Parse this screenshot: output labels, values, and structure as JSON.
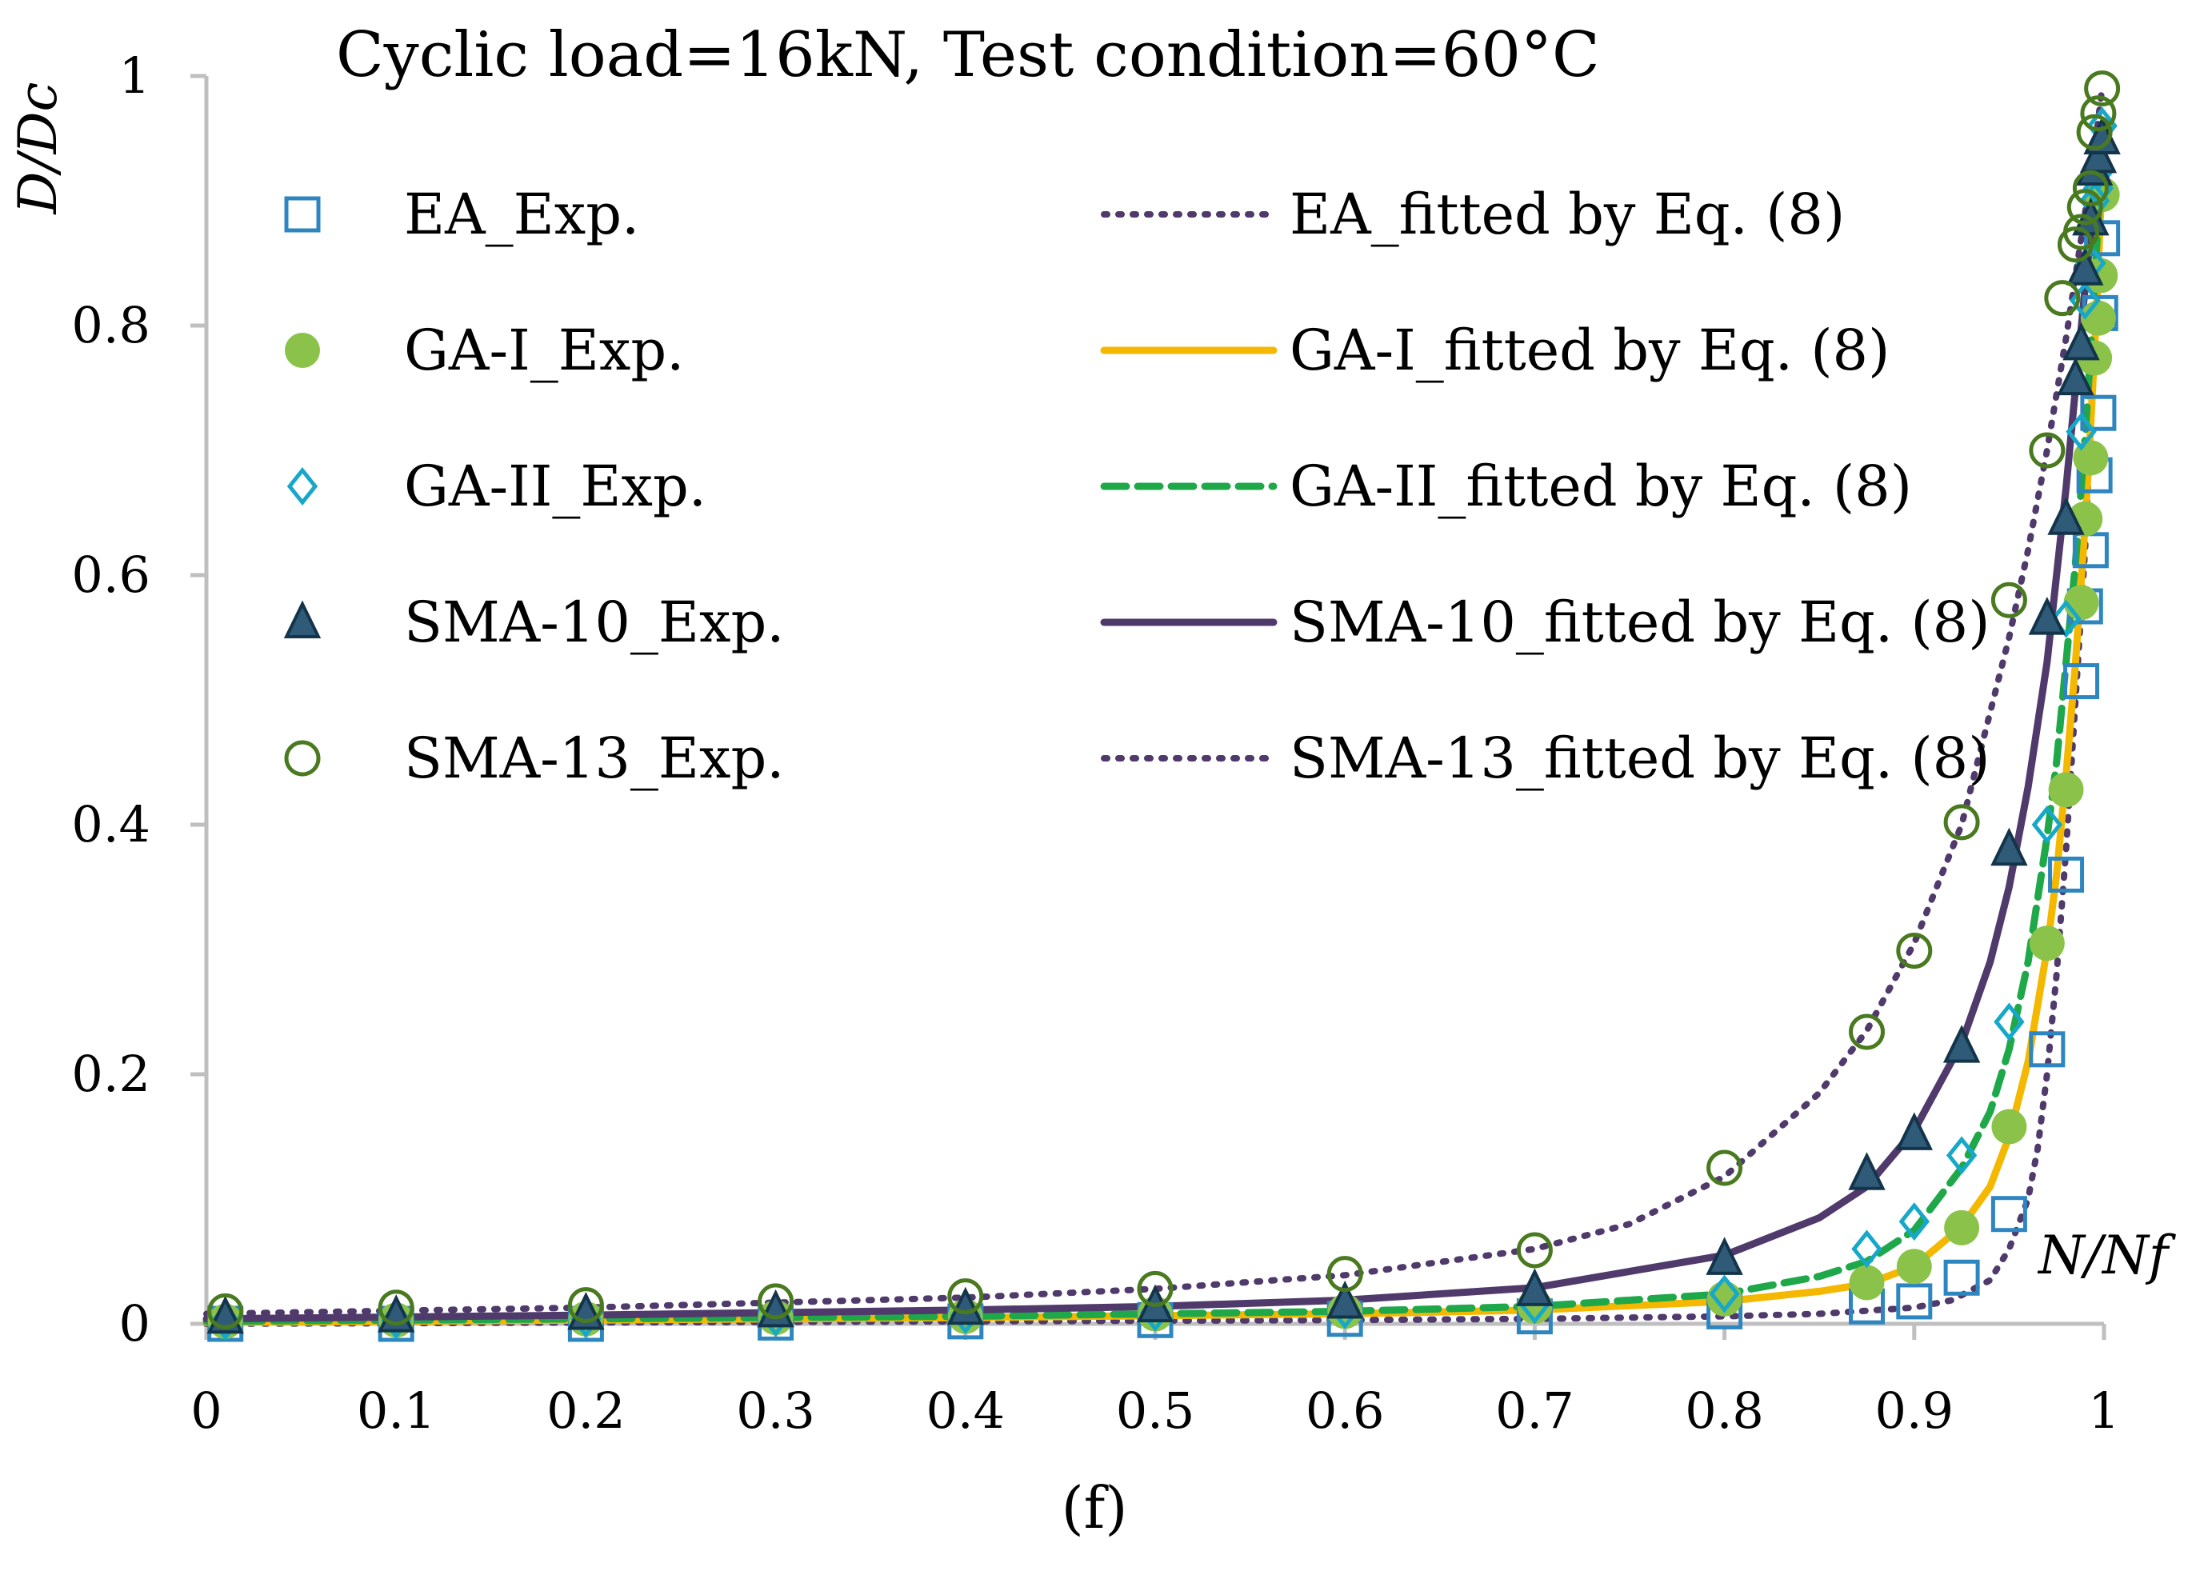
{
  "chart_data": {
    "type": "scatter",
    "title": "Cyclic load=16kN, Test condition=60°C",
    "ylabel": "D/Dc",
    "xlabel": "N/Nf",
    "caption": "(f)",
    "xlim": [
      0,
      1
    ],
    "ylim": [
      0,
      1
    ],
    "x_ticks": [
      "0",
      "0.1",
      "0.2",
      "0.3",
      "0.4",
      "0.5",
      "0.6",
      "0.7",
      "0.8",
      "0.9",
      "1"
    ],
    "y_ticks": [
      "0",
      "0.2",
      "0.4",
      "0.6",
      "0.8",
      "1"
    ],
    "grid": false,
    "legend_position": "top-left",
    "series": [
      {
        "name": "EA_Exp.",
        "kind": "markers",
        "marker": "square-open",
        "color": "#2e86c1",
        "x": [
          0.01,
          0.1,
          0.2,
          0.3,
          0.4,
          0.5,
          0.6,
          0.7,
          0.8,
          0.875,
          0.9,
          0.925,
          0.95,
          0.97,
          0.98,
          0.988,
          0.99,
          0.993,
          0.995,
          0.997,
          0.998,
          0.999
        ],
        "y": [
          0.0,
          0.0,
          0.0,
          0.001,
          0.002,
          0.003,
          0.004,
          0.006,
          0.01,
          0.014,
          0.018,
          0.037,
          0.088,
          0.22,
          0.36,
          0.515,
          0.575,
          0.62,
          0.68,
          0.73,
          0.81,
          0.87
        ]
      },
      {
        "name": "GA-I_Exp.",
        "kind": "markers",
        "marker": "circle-filled",
        "color": "#8bc34a",
        "x": [
          0.01,
          0.1,
          0.2,
          0.3,
          0.4,
          0.5,
          0.6,
          0.7,
          0.8,
          0.875,
          0.9,
          0.925,
          0.95,
          0.97,
          0.98,
          0.988,
          0.99,
          0.993,
          0.995,
          0.997,
          0.998,
          0.999
        ],
        "y": [
          0.002,
          0.003,
          0.004,
          0.005,
          0.006,
          0.008,
          0.01,
          0.014,
          0.02,
          0.033,
          0.046,
          0.077,
          0.158,
          0.305,
          0.428,
          0.578,
          0.645,
          0.694,
          0.774,
          0.806,
          0.84,
          0.905
        ]
      },
      {
        "name": "GA-II_Exp.",
        "kind": "markers",
        "marker": "diamond-open",
        "color": "#17a8c9",
        "x": [
          0.01,
          0.1,
          0.2,
          0.3,
          0.4,
          0.5,
          0.6,
          0.7,
          0.8,
          0.875,
          0.9,
          0.925,
          0.95,
          0.97,
          0.98,
          0.988,
          0.99,
          0.993,
          0.995,
          0.997,
          0.998,
          0.999
        ],
        "y": [
          0.002,
          0.003,
          0.004,
          0.005,
          0.007,
          0.009,
          0.011,
          0.015,
          0.024,
          0.06,
          0.082,
          0.135,
          0.242,
          0.4,
          0.565,
          0.715,
          0.82,
          0.85,
          0.9,
          0.91,
          0.925,
          0.96
        ]
      },
      {
        "name": "SMA-10_Exp.",
        "kind": "markers",
        "marker": "triangle-filled",
        "color": "#1f4e6b",
        "x": [
          0.01,
          0.1,
          0.2,
          0.3,
          0.4,
          0.5,
          0.6,
          0.7,
          0.8,
          0.875,
          0.9,
          0.925,
          0.95,
          0.97,
          0.98,
          0.985,
          0.988,
          0.99,
          0.993,
          0.995,
          0.997,
          0.999
        ],
        "y": [
          0.005,
          0.006,
          0.008,
          0.01,
          0.012,
          0.014,
          0.017,
          0.027,
          0.052,
          0.12,
          0.152,
          0.222,
          0.38,
          0.565,
          0.645,
          0.757,
          0.785,
          0.845,
          0.885,
          0.925,
          0.935,
          0.95
        ]
      },
      {
        "name": "SMA-13_Exp.",
        "kind": "markers",
        "marker": "circle-open",
        "color": "#4a7a1f",
        "x": [
          0.01,
          0.1,
          0.2,
          0.3,
          0.4,
          0.5,
          0.6,
          0.7,
          0.8,
          0.875,
          0.9,
          0.925,
          0.95,
          0.97,
          0.978,
          0.985,
          0.988,
          0.99,
          0.993,
          0.995,
          0.997,
          0.999
        ],
        "y": [
          0.01,
          0.013,
          0.015,
          0.018,
          0.022,
          0.028,
          0.04,
          0.059,
          0.125,
          0.234,
          0.299,
          0.402,
          0.58,
          0.7,
          0.822,
          0.865,
          0.875,
          0.895,
          0.91,
          0.955,
          0.97,
          0.99
        ]
      },
      {
        "name": "EA_fitted by Eq. (8)",
        "kind": "line",
        "style": "dotted",
        "color": "#4f3a6b",
        "x": [
          0.0,
          0.2,
          0.4,
          0.6,
          0.7,
          0.8,
          0.85,
          0.9,
          0.92,
          0.94,
          0.95,
          0.96,
          0.965,
          0.97,
          0.975,
          0.98,
          0.985,
          0.99,
          0.993,
          0.996,
          0.999
        ],
        "y": [
          0.0,
          0.001,
          0.002,
          0.003,
          0.004,
          0.006,
          0.008,
          0.013,
          0.019,
          0.035,
          0.06,
          0.1,
          0.14,
          0.2,
          0.28,
          0.38,
          0.5,
          0.62,
          0.72,
          0.82,
          0.92
        ]
      },
      {
        "name": "GA-I_fitted by Eq. (8)",
        "kind": "line",
        "style": "solid",
        "color": "#f5b800",
        "x": [
          0.0,
          0.2,
          0.4,
          0.6,
          0.7,
          0.8,
          0.85,
          0.875,
          0.9,
          0.925,
          0.94,
          0.95,
          0.96,
          0.97,
          0.975,
          0.98,
          0.985,
          0.99,
          0.993,
          0.996,
          0.999
        ],
        "y": [
          0.001,
          0.003,
          0.005,
          0.008,
          0.011,
          0.018,
          0.026,
          0.032,
          0.046,
          0.078,
          0.11,
          0.15,
          0.21,
          0.3,
          0.36,
          0.44,
          0.53,
          0.64,
          0.72,
          0.81,
          0.92
        ]
      },
      {
        "name": "GA-II_fitted by Eq. (8)",
        "kind": "line",
        "style": "dashed",
        "color": "#1fa84a",
        "x": [
          0.0,
          0.2,
          0.4,
          0.6,
          0.7,
          0.8,
          0.85,
          0.875,
          0.9,
          0.925,
          0.94,
          0.95,
          0.96,
          0.97,
          0.975,
          0.98,
          0.985,
          0.99,
          0.993,
          0.996,
          0.999
        ],
        "y": [
          0.002,
          0.004,
          0.006,
          0.01,
          0.014,
          0.024,
          0.038,
          0.05,
          0.075,
          0.125,
          0.17,
          0.22,
          0.29,
          0.39,
          0.45,
          0.53,
          0.61,
          0.71,
          0.78,
          0.86,
          0.94
        ]
      },
      {
        "name": "SMA-10_fitted by Eq. (8)",
        "kind": "line",
        "style": "solid",
        "color": "#4f3a6b",
        "x": [
          0.0,
          0.2,
          0.4,
          0.5,
          0.6,
          0.7,
          0.8,
          0.85,
          0.875,
          0.9,
          0.925,
          0.94,
          0.95,
          0.96,
          0.97,
          0.975,
          0.98,
          0.985,
          0.99,
          0.995,
          0.999
        ],
        "y": [
          0.004,
          0.007,
          0.011,
          0.014,
          0.019,
          0.029,
          0.055,
          0.085,
          0.11,
          0.155,
          0.225,
          0.29,
          0.35,
          0.43,
          0.53,
          0.6,
          0.67,
          0.75,
          0.83,
          0.9,
          0.95
        ]
      },
      {
        "name": "SMA-13_fitted by Eq. (8)",
        "kind": "line",
        "style": "dotted",
        "color": "#4f3a6b",
        "x": [
          0.0,
          0.2,
          0.4,
          0.5,
          0.6,
          0.7,
          0.75,
          0.8,
          0.85,
          0.875,
          0.9,
          0.925,
          0.95,
          0.96,
          0.97,
          0.975,
          0.98,
          0.985,
          0.99,
          0.995,
          0.999
        ],
        "y": [
          0.008,
          0.013,
          0.021,
          0.028,
          0.039,
          0.06,
          0.08,
          0.118,
          0.185,
          0.235,
          0.305,
          0.4,
          0.55,
          0.62,
          0.7,
          0.745,
          0.79,
          0.84,
          0.89,
          0.94,
          0.99
        ]
      }
    ]
  }
}
